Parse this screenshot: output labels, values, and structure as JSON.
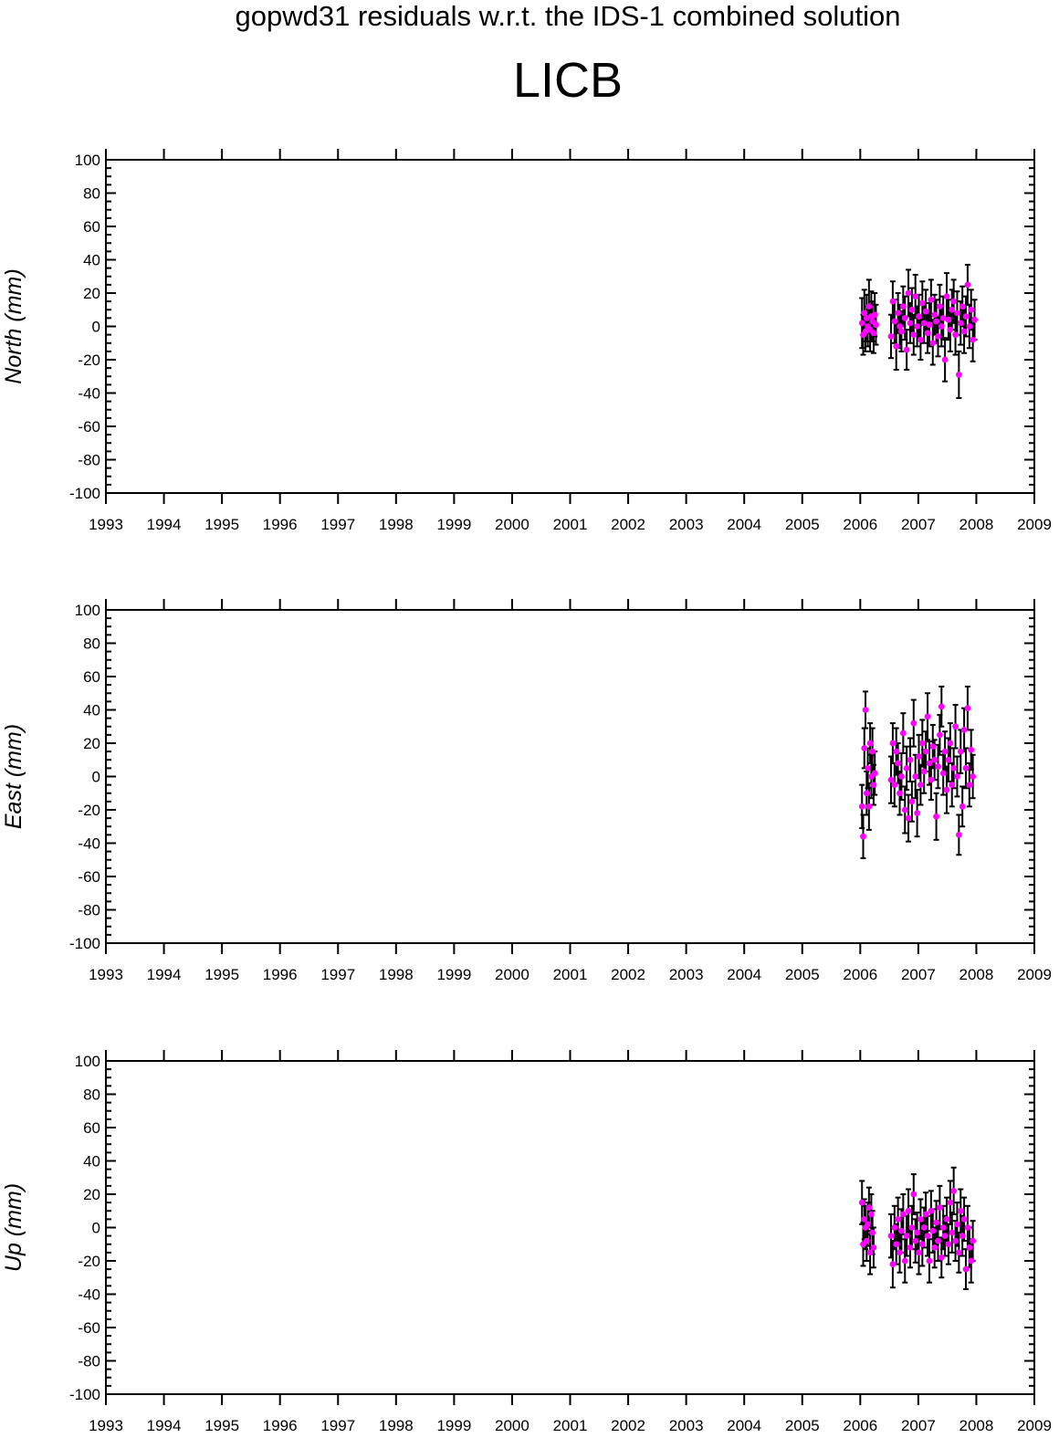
{
  "title": "gopwd31 residuals w.r.t. the IDS-1 combined solution",
  "station": "LICB",
  "colors": {
    "point": "#ff00ff",
    "errorbar": "#000000",
    "axis": "#000000"
  },
  "chart_data": [
    {
      "type": "scatter",
      "ylabel": "North (mm)",
      "xlim": [
        1993,
        2009
      ],
      "ylim": [
        -100,
        100
      ],
      "x_ticks": [
        "1993",
        "1994",
        "1995",
        "1996",
        "1997",
        "1998",
        "1999",
        "2000",
        "2001",
        "2002",
        "2003",
        "2004",
        "2005",
        "2006",
        "2007",
        "2008",
        "2009"
      ],
      "y_ticks": [
        "100",
        "80",
        "60",
        "40",
        "20",
        "0",
        "-20",
        "-40",
        "-60",
        "-80",
        "-100"
      ],
      "grid": false,
      "error_bars": true,
      "points": [
        [
          2006.03,
          2,
          15
        ],
        [
          2006.05,
          -5,
          12
        ],
        [
          2006.07,
          8,
          14
        ],
        [
          2006.09,
          -3,
          12
        ],
        [
          2006.11,
          5,
          14
        ],
        [
          2006.13,
          0,
          12
        ],
        [
          2006.15,
          12,
          16
        ],
        [
          2006.17,
          -2,
          13
        ],
        [
          2006.19,
          6,
          15
        ],
        [
          2006.21,
          3,
          12
        ],
        [
          2006.23,
          -4,
          12
        ],
        [
          2006.25,
          7,
          13
        ],
        [
          2006.27,
          1,
          12
        ],
        [
          2006.53,
          -6,
          13
        ],
        [
          2006.56,
          15,
          12
        ],
        [
          2006.59,
          3,
          13
        ],
        [
          2006.62,
          -12,
          14
        ],
        [
          2006.65,
          8,
          12
        ],
        [
          2006.68,
          0,
          13
        ],
        [
          2006.71,
          -3,
          12
        ],
        [
          2006.74,
          12,
          12
        ],
        [
          2006.77,
          5,
          13
        ],
        [
          2006.8,
          -14,
          12
        ],
        [
          2006.83,
          20,
          14
        ],
        [
          2006.86,
          2,
          12
        ],
        [
          2006.89,
          10,
          13
        ],
        [
          2006.92,
          -5,
          12
        ],
        [
          2006.95,
          18,
          13
        ],
        [
          2006.98,
          0,
          12
        ],
        [
          2007.01,
          6,
          13
        ],
        [
          2007.04,
          -8,
          12
        ],
        [
          2007.07,
          14,
          13
        ],
        [
          2007.1,
          2,
          12
        ],
        [
          2007.13,
          9,
          13
        ],
        [
          2007.16,
          -4,
          12
        ],
        [
          2007.19,
          1,
          13
        ],
        [
          2007.22,
          16,
          12
        ],
        [
          2007.25,
          -10,
          13
        ],
        [
          2007.28,
          7,
          12
        ],
        [
          2007.31,
          3,
          13
        ],
        [
          2007.34,
          -6,
          12
        ],
        [
          2007.37,
          12,
          13
        ],
        [
          2007.4,
          0,
          12
        ],
        [
          2007.43,
          5,
          13
        ],
        [
          2007.46,
          -20,
          13
        ],
        [
          2007.49,
          18,
          14
        ],
        [
          2007.52,
          4,
          12
        ],
        [
          2007.55,
          -2,
          13
        ],
        [
          2007.58,
          10,
          12
        ],
        [
          2007.61,
          15,
          13
        ],
        [
          2007.64,
          -5,
          12
        ],
        [
          2007.67,
          8,
          13
        ],
        [
          2007.7,
          -29,
          14
        ],
        [
          2007.73,
          2,
          13
        ],
        [
          2007.76,
          12,
          12
        ],
        [
          2007.79,
          -3,
          13
        ],
        [
          2007.82,
          6,
          12
        ],
        [
          2007.85,
          25,
          12
        ],
        [
          2007.88,
          0,
          13
        ],
        [
          2007.91,
          10,
          12
        ],
        [
          2007.94,
          -8,
          13
        ],
        [
          2007.97,
          4,
          12
        ]
      ]
    },
    {
      "type": "scatter",
      "ylabel": "East (mm)",
      "xlim": [
        1993,
        2009
      ],
      "ylim": [
        -100,
        100
      ],
      "x_ticks": [
        "1993",
        "1994",
        "1995",
        "1996",
        "1997",
        "1998",
        "1999",
        "2000",
        "2001",
        "2002",
        "2003",
        "2004",
        "2005",
        "2006",
        "2007",
        "2008",
        "2009"
      ],
      "y_ticks": [
        "100",
        "80",
        "60",
        "40",
        "20",
        "0",
        "-20",
        "-40",
        "-60",
        "-80",
        "-100"
      ],
      "grid": false,
      "error_bars": true,
      "points": [
        [
          2006.03,
          -18,
          13
        ],
        [
          2006.05,
          -36,
          13
        ],
        [
          2006.07,
          17,
          12
        ],
        [
          2006.09,
          40,
          11
        ],
        [
          2006.11,
          -10,
          13
        ],
        [
          2006.13,
          5,
          12
        ],
        [
          2006.15,
          -18,
          14
        ],
        [
          2006.17,
          20,
          12
        ],
        [
          2006.19,
          0,
          13
        ],
        [
          2006.21,
          15,
          14
        ],
        [
          2006.23,
          -5,
          12
        ],
        [
          2006.25,
          2,
          13
        ],
        [
          2006.53,
          -2,
          14
        ],
        [
          2006.56,
          20,
          12
        ],
        [
          2006.59,
          -5,
          13
        ],
        [
          2006.62,
          15,
          14
        ],
        [
          2006.65,
          8,
          12
        ],
        [
          2006.68,
          -10,
          13
        ],
        [
          2006.71,
          0,
          14
        ],
        [
          2006.74,
          26,
          12
        ],
        [
          2006.77,
          -20,
          14
        ],
        [
          2006.8,
          5,
          13
        ],
        [
          2006.83,
          -25,
          14
        ],
        [
          2006.86,
          10,
          13
        ],
        [
          2006.89,
          -15,
          12
        ],
        [
          2006.92,
          32,
          14
        ],
        [
          2006.95,
          0,
          13
        ],
        [
          2006.98,
          -22,
          14
        ],
        [
          2007.01,
          12,
          13
        ],
        [
          2007.04,
          -5,
          12
        ],
        [
          2007.07,
          20,
          14
        ],
        [
          2007.1,
          3,
          13
        ],
        [
          2007.13,
          15,
          12
        ],
        [
          2007.16,
          36,
          14
        ],
        [
          2007.19,
          8,
          13
        ],
        [
          2007.22,
          -2,
          12
        ],
        [
          2007.25,
          18,
          13
        ],
        [
          2007.28,
          10,
          12
        ],
        [
          2007.31,
          -24,
          14
        ],
        [
          2007.34,
          6,
          13
        ],
        [
          2007.37,
          25,
          12
        ],
        [
          2007.4,
          42,
          12
        ],
        [
          2007.43,
          2,
          13
        ],
        [
          2007.46,
          15,
          12
        ],
        [
          2007.49,
          -8,
          14
        ],
        [
          2007.52,
          10,
          13
        ],
        [
          2007.55,
          20,
          12
        ],
        [
          2007.58,
          -5,
          13
        ],
        [
          2007.61,
          5,
          12
        ],
        [
          2007.64,
          30,
          13
        ],
        [
          2007.67,
          0,
          12
        ],
        [
          2007.7,
          -35,
          12
        ],
        [
          2007.73,
          15,
          13
        ],
        [
          2007.76,
          -18,
          12
        ],
        [
          2007.79,
          28,
          13
        ],
        [
          2007.82,
          5,
          12
        ],
        [
          2007.85,
          41,
          13
        ],
        [
          2007.88,
          -5,
          13
        ],
        [
          2007.91,
          16,
          12
        ],
        [
          2007.94,
          0,
          13
        ]
      ]
    },
    {
      "type": "scatter",
      "ylabel": "Up (mm)",
      "xlim": [
        1993,
        2009
      ],
      "ylim": [
        -100,
        100
      ],
      "x_ticks": [
        "1993",
        "1994",
        "1995",
        "1996",
        "1997",
        "1998",
        "1999",
        "2000",
        "2001",
        "2002",
        "2003",
        "2004",
        "2005",
        "2006",
        "2007",
        "2008",
        "2009"
      ],
      "y_ticks": [
        "100",
        "80",
        "60",
        "40",
        "20",
        "0",
        "-20",
        "-40",
        "-60",
        "-80",
        "-100"
      ],
      "grid": false,
      "error_bars": true,
      "points": [
        [
          2006.03,
          15,
          13
        ],
        [
          2006.05,
          -10,
          13
        ],
        [
          2006.07,
          5,
          12
        ],
        [
          2006.09,
          0,
          13
        ],
        [
          2006.11,
          -8,
          12
        ],
        [
          2006.13,
          2,
          13
        ],
        [
          2006.15,
          12,
          12
        ],
        [
          2006.17,
          -15,
          13
        ],
        [
          2006.19,
          8,
          12
        ],
        [
          2006.21,
          -3,
          13
        ],
        [
          2006.23,
          -12,
          12
        ],
        [
          2006.53,
          -5,
          13
        ],
        [
          2006.56,
          -22,
          14
        ],
        [
          2006.59,
          0,
          13
        ],
        [
          2006.62,
          -10,
          12
        ],
        [
          2006.65,
          5,
          13
        ],
        [
          2006.68,
          -15,
          12
        ],
        [
          2006.71,
          -2,
          13
        ],
        [
          2006.74,
          8,
          12
        ],
        [
          2006.77,
          -20,
          13
        ],
        [
          2006.8,
          -5,
          12
        ],
        [
          2006.83,
          10,
          13
        ],
        [
          2006.86,
          -12,
          12
        ],
        [
          2006.89,
          0,
          13
        ],
        [
          2006.92,
          20,
          12
        ],
        [
          2006.95,
          -8,
          13
        ],
        [
          2006.98,
          -3,
          12
        ],
        [
          2007.01,
          -15,
          13
        ],
        [
          2007.04,
          5,
          12
        ],
        [
          2007.07,
          -10,
          13
        ],
        [
          2007.1,
          0,
          12
        ],
        [
          2007.13,
          8,
          13
        ],
        [
          2007.16,
          -5,
          12
        ],
        [
          2007.19,
          -20,
          13
        ],
        [
          2007.22,
          10,
          12
        ],
        [
          2007.25,
          -2,
          13
        ],
        [
          2007.28,
          -12,
          12
        ],
        [
          2007.31,
          3,
          13
        ],
        [
          2007.34,
          -8,
          12
        ],
        [
          2007.37,
          12,
          13
        ],
        [
          2007.4,
          -18,
          12
        ],
        [
          2007.43,
          0,
          13
        ],
        [
          2007.46,
          -5,
          12
        ],
        [
          2007.49,
          5,
          13
        ],
        [
          2007.52,
          -10,
          12
        ],
        [
          2007.55,
          15,
          13
        ],
        [
          2007.58,
          -3,
          12
        ],
        [
          2007.61,
          22,
          14
        ],
        [
          2007.64,
          -8,
          12
        ],
        [
          2007.67,
          2,
          13
        ],
        [
          2007.7,
          -15,
          12
        ],
        [
          2007.73,
          10,
          13
        ],
        [
          2007.76,
          -5,
          12
        ],
        [
          2007.79,
          5,
          13
        ],
        [
          2007.82,
          -25,
          12
        ],
        [
          2007.85,
          0,
          13
        ],
        [
          2007.88,
          -12,
          12
        ],
        [
          2007.91,
          -20,
          13
        ],
        [
          2007.94,
          -8,
          12
        ]
      ]
    }
  ]
}
